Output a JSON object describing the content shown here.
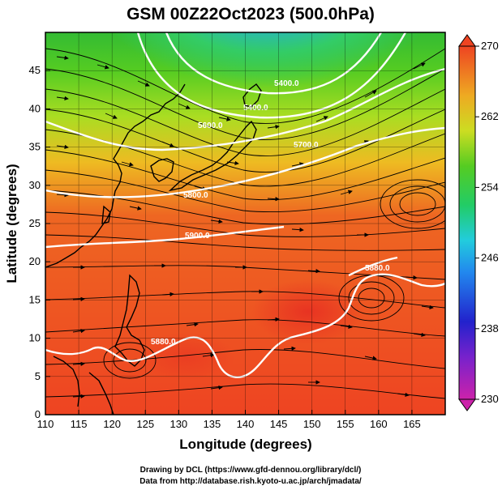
{
  "title": "GSM 00Z22Oct2023 (500.0hPa)",
  "x_axis": {
    "label": "Longitude (degrees)",
    "min": 110,
    "max": 170,
    "ticks": [
      110,
      115,
      120,
      125,
      130,
      135,
      140,
      145,
      150,
      155,
      160,
      165
    ]
  },
  "y_axis": {
    "label": "Latitude  (degrees)",
    "min": 0,
    "max": 50,
    "ticks": [
      0,
      5,
      10,
      15,
      20,
      25,
      30,
      35,
      40,
      45
    ]
  },
  "colorbar": {
    "min": 230,
    "max": 270,
    "labels": [
      230,
      238,
      246,
      254,
      262,
      270
    ],
    "colors": [
      "#cc22aa",
      "#2222cc",
      "#22aaee",
      "#22cc44",
      "#ddcc22",
      "#ee4422"
    ]
  },
  "contour_labels": [
    "5400.0",
    "5600.0",
    "5700.0",
    "5800.0",
    "5900.0",
    "5880.0"
  ],
  "credits": [
    "Drawing by DCL (https://www.gfd-dennou.org/library/dcl/)",
    "Data from http://database.rish.kyoto-u.ac.jp/arch/jmadata/"
  ]
}
